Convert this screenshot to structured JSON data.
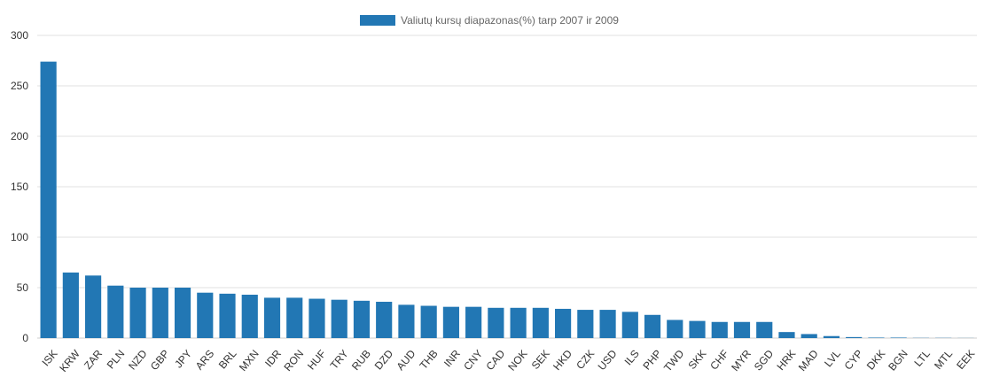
{
  "chart_data": {
    "type": "bar",
    "legend": {
      "label": "Valiutų kursų diapazonas(%) tarp 2007 ir 2009",
      "position": "top-center",
      "color": "#2277b4"
    },
    "title": "",
    "xlabel": "",
    "ylabel": "",
    "ylim": [
      0,
      300
    ],
    "yticks": [
      0,
      50,
      100,
      150,
      200,
      250,
      300
    ],
    "grid": true,
    "categories": [
      "ISK",
      "KRW",
      "ZAR",
      "PLN",
      "NZD",
      "GBP",
      "JPY",
      "ARS",
      "BRL",
      "MXN",
      "IDR",
      "RON",
      "HUF",
      "TRY",
      "RUB",
      "DZD",
      "AUD",
      "THB",
      "INR",
      "CNY",
      "CAD",
      "NOK",
      "SEK",
      "HKD",
      "CZK",
      "USD",
      "ILS",
      "PHP",
      "TWD",
      "SKK",
      "CHF",
      "MYR",
      "SGD",
      "HRK",
      "MAD",
      "LVL",
      "CYP",
      "DKK",
      "BGN",
      "LTL",
      "MTL",
      "EEK"
    ],
    "series": [
      {
        "name": "Valiutų kursų diapazonas(%) tarp 2007 ir 2009",
        "color": "#2277b4",
        "values": [
          274,
          65,
          62,
          52,
          50,
          50,
          50,
          45,
          44,
          43,
          40,
          40,
          39,
          38,
          37,
          36,
          33,
          32,
          31,
          31,
          30,
          30,
          30,
          29,
          28,
          28,
          26,
          23,
          18,
          17,
          16,
          16,
          16,
          6,
          4,
          2,
          1,
          0.5,
          0.5,
          0.2,
          0.2,
          0.1
        ]
      }
    ]
  }
}
